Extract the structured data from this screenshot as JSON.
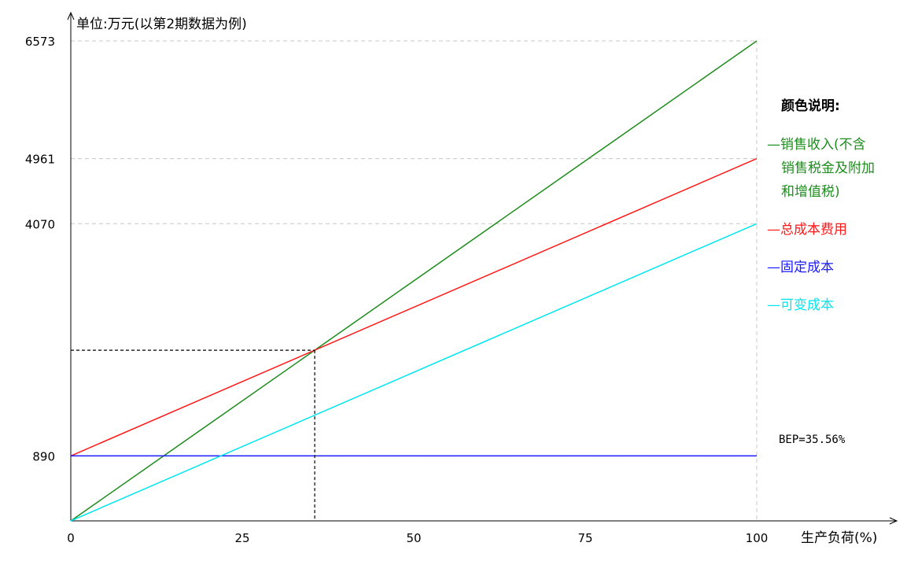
{
  "chart_data": {
    "type": "line",
    "unit_label": "单位:万元(以第2期数据为例)",
    "xlabel": "生产负荷(%)",
    "x": [
      0,
      100
    ],
    "xlim": [
      0,
      100
    ],
    "ylim": [
      0,
      6573
    ],
    "x_ticks": [
      "0",
      "25",
      "50",
      "75",
      "100"
    ],
    "y_ticks": [
      "890",
      "4070",
      "4961",
      "6573"
    ],
    "grid": "dashed lines at labeled y values and at x=100",
    "series": [
      {
        "name": "销售收入(不含销售税金及附加和增值税)",
        "key": "revenue",
        "color": "#1e8c1e",
        "values": [
          0,
          6573
        ]
      },
      {
        "name": "总成本费用",
        "key": "total_cost",
        "color": "#ff1a1a",
        "values": [
          890,
          4961
        ]
      },
      {
        "name": "固定成本",
        "key": "fixed_cost",
        "color": "#1a1aff",
        "values": [
          890,
          890
        ]
      },
      {
        "name": "可变成本",
        "key": "variable_cost",
        "color": "#00e5ee",
        "values": [
          0,
          4070
        ]
      }
    ],
    "bep": {
      "text": "BEP=35.56%",
      "x": 35.56,
      "y": 2337
    },
    "legend": {
      "title": "颜色说明:",
      "position": "right",
      "items": [
        {
          "lines": [
            "—销售收入(不含",
            "销售税金及附加",
            "和增值税)"
          ],
          "color": "#1e8c1e"
        },
        {
          "lines": [
            "—总成本费用"
          ],
          "color": "#ff1a1a"
        },
        {
          "lines": [
            "—固定成本"
          ],
          "color": "#1a1aff"
        },
        {
          "lines": [
            "—可变成本"
          ],
          "color": "#00e5ee"
        }
      ]
    }
  }
}
